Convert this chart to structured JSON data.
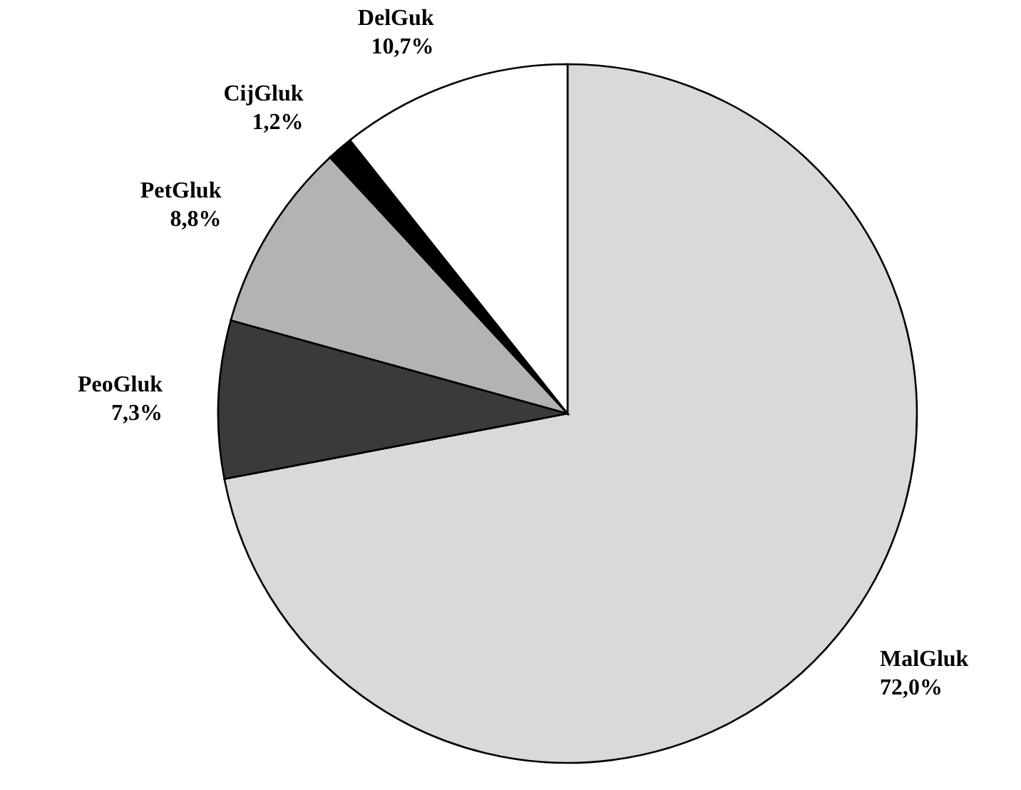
{
  "chart_data": {
    "type": "pie",
    "categories": [
      "MalGluk",
      "PeoGluk",
      "PetGluk",
      "CijGluk",
      "DelGuk"
    ],
    "values": [
      72.0,
      7.3,
      8.8,
      1.2,
      10.7
    ],
    "value_labels": [
      "72,0%",
      "7,3%",
      "8,8%",
      "1,2%",
      "10,7%"
    ],
    "colors": [
      "#d9d9d9",
      "#3a3a3a",
      "#b3b3b3",
      "#000000",
      "#ffffff"
    ]
  }
}
